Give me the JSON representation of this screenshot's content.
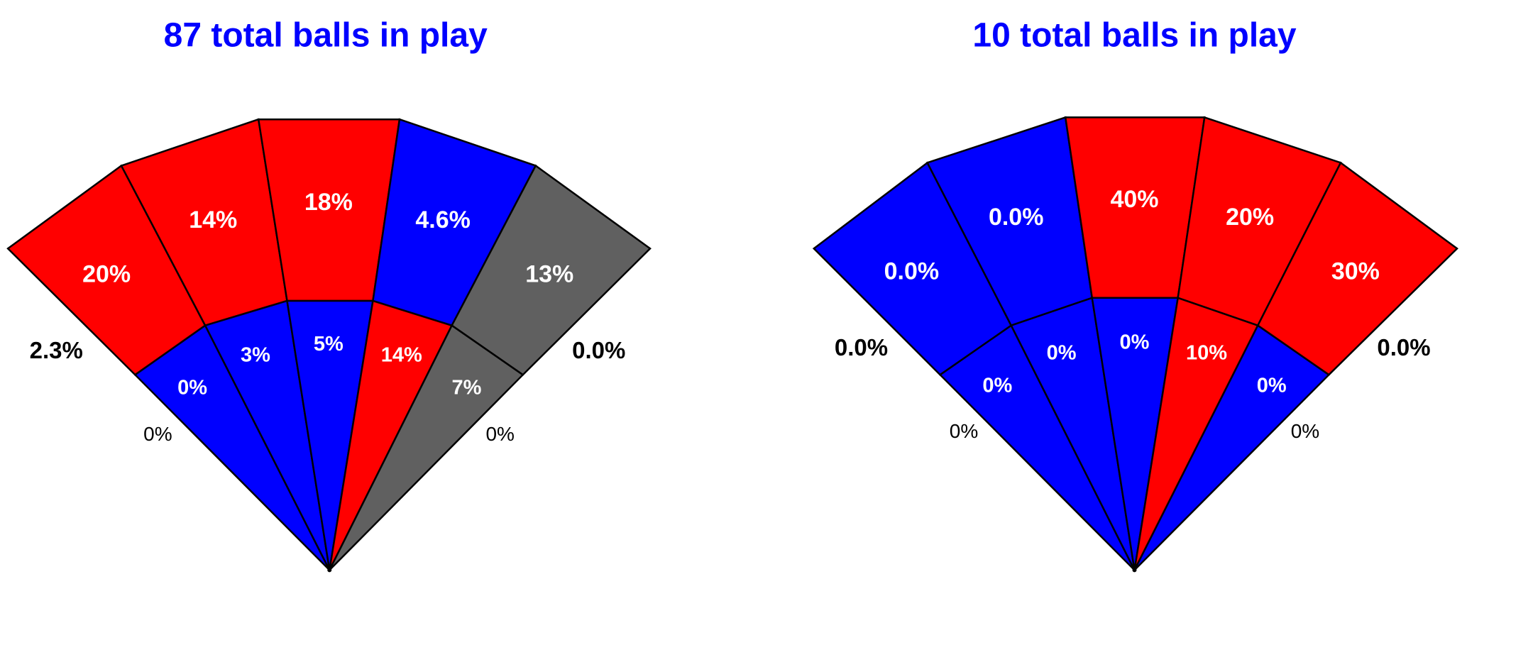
{
  "colors": {
    "hot": "#ff0000",
    "cold": "#0000ff",
    "neutral": "#606060",
    "title": "#0000ff",
    "border": "#000000"
  },
  "chart_data": [
    {
      "type": "spray-zone-wedge",
      "title": "87 total balls in play",
      "outer_zones": [
        {
          "value": "20%",
          "class": "hot"
        },
        {
          "value": "14%",
          "class": "hot"
        },
        {
          "value": "18%",
          "class": "hot"
        },
        {
          "value": "4.6%",
          "class": "cold"
        },
        {
          "value": "13%",
          "class": "neutral"
        }
      ],
      "inner_zones": [
        {
          "value": "0%",
          "class": "cold"
        },
        {
          "value": "3%",
          "class": "cold"
        },
        {
          "value": "5%",
          "class": "cold"
        },
        {
          "value": "14%",
          "class": "hot"
        },
        {
          "value": "7%",
          "class": "neutral"
        }
      ],
      "foul": {
        "left_outer": "2.3%",
        "left_inner": "0%",
        "right_outer": "0.0%",
        "right_inner": "0%"
      }
    },
    {
      "type": "spray-zone-wedge",
      "title": "10 total balls in play",
      "outer_zones": [
        {
          "value": "0.0%",
          "class": "cold"
        },
        {
          "value": "0.0%",
          "class": "cold"
        },
        {
          "value": "40%",
          "class": "hot"
        },
        {
          "value": "20%",
          "class": "hot"
        },
        {
          "value": "30%",
          "class": "hot"
        }
      ],
      "inner_zones": [
        {
          "value": "0%",
          "class": "cold"
        },
        {
          "value": "0%",
          "class": "cold"
        },
        {
          "value": "0%",
          "class": "cold"
        },
        {
          "value": "10%",
          "class": "hot"
        },
        {
          "value": "0%",
          "class": "cold"
        }
      ],
      "foul": {
        "left_outer": "0.0%",
        "left_inner": "0%",
        "right_outer": "0.0%",
        "right_inner": "0%"
      }
    }
  ]
}
